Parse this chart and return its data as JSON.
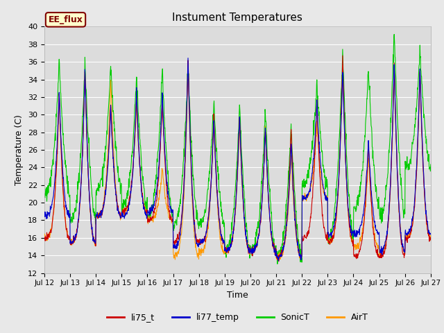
{
  "title": "Instument Temperatures",
  "xlabel": "Time",
  "ylabel": "Temperature (C)",
  "ylim": [
    12,
    40
  ],
  "ytick_vals": [
    12,
    14,
    16,
    18,
    20,
    22,
    24,
    26,
    28,
    30,
    32,
    34,
    36,
    38,
    40
  ],
  "xtick_labels": [
    "Jul 12",
    "Jul 13",
    "Jul 14",
    "Jul 15",
    "Jul 16",
    "Jul 17",
    "Jul 18",
    "Jul 19",
    "Jul 20",
    "Jul 21",
    "Jul 22",
    "Jul 23",
    "Jul 24",
    "Jul 25",
    "Jul 26",
    "Jul 27"
  ],
  "bg_color": "#dcdcdc",
  "fig_color": "#e8e8e8",
  "annotation_text": "EE_flux",
  "annotation_bg": "#ffffcc",
  "annotation_border": "#800000",
  "legend_entries": [
    "li75_t",
    "li77_temp",
    "SonicT",
    "AirT"
  ],
  "line_colors": [
    "#cc0000",
    "#0000cc",
    "#00cc00",
    "#ff9900"
  ],
  "line_width": 0.8,
  "n_days": 15,
  "pts_per_day": 96,
  "daily_peaks_red": [
    32.5,
    35.0,
    31.0,
    32.0,
    31.5,
    36.5,
    30.0,
    30.0,
    28.5,
    28.5,
    32.0,
    36.5,
    27.0,
    36.0,
    35.0
  ],
  "daily_troughs_red": [
    16.0,
    15.5,
    18.5,
    19.0,
    18.0,
    15.5,
    15.5,
    14.5,
    14.5,
    13.8,
    16.0,
    15.5,
    14.0,
    14.0,
    16.0
  ],
  "daily_peaks_blue": [
    32.5,
    35.0,
    31.0,
    32.5,
    32.5,
    36.5,
    29.5,
    30.0,
    28.5,
    27.0,
    31.5,
    35.0,
    27.0,
    36.0,
    35.5
  ],
  "daily_troughs_blue": [
    18.5,
    15.5,
    18.5,
    18.5,
    19.0,
    15.0,
    15.5,
    14.5,
    14.5,
    13.8,
    20.5,
    16.5,
    16.5,
    14.5,
    16.5
  ],
  "daily_peaks_green": [
    36.0,
    36.0,
    35.5,
    34.5,
    35.0,
    35.5,
    31.5,
    31.0,
    30.5,
    28.5,
    33.5,
    37.5,
    35.5,
    39.5,
    37.5
  ],
  "daily_troughs_green": [
    21.0,
    18.0,
    21.5,
    19.5,
    18.5,
    17.5,
    17.5,
    14.5,
    14.5,
    13.8,
    22.0,
    16.0,
    19.5,
    18.5,
    24.0
  ],
  "daily_peaks_orange": [
    32.0,
    35.0,
    34.0,
    31.5,
    24.0,
    35.5,
    29.5,
    29.0,
    28.5,
    25.5,
    29.0,
    36.0,
    25.5,
    35.5,
    35.0
  ],
  "daily_troughs_orange": [
    16.0,
    15.5,
    18.5,
    19.0,
    18.0,
    14.0,
    14.5,
    14.5,
    14.5,
    13.8,
    20.5,
    15.5,
    15.0,
    14.5,
    16.0
  ]
}
